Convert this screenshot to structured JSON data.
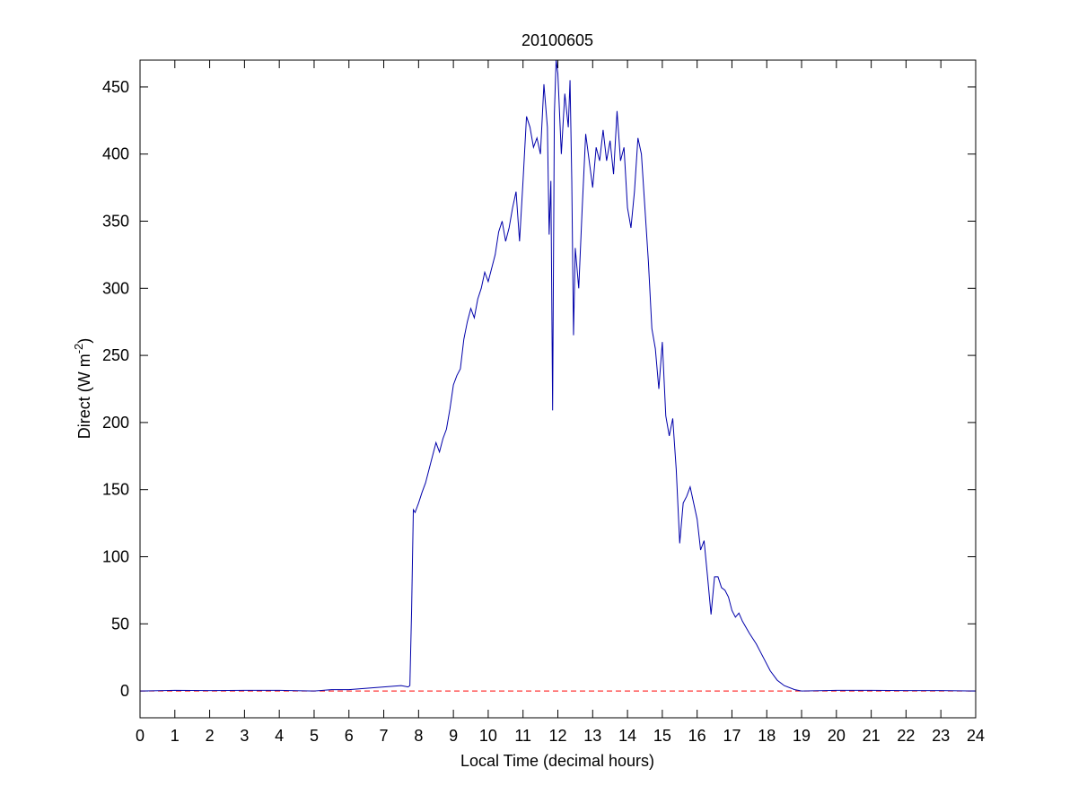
{
  "chart_data": {
    "type": "line",
    "title": "20100605",
    "xlabel": "Local Time (decimal hours)",
    "ylabel": {
      "text": "Direct (W m",
      "sup": "-2",
      "end": ")"
    },
    "xlim": [
      0,
      24
    ],
    "xticks": [
      0,
      1,
      2,
      3,
      4,
      5,
      6,
      7,
      8,
      9,
      10,
      11,
      12,
      13,
      14,
      15,
      16,
      17,
      18,
      19,
      20,
      21,
      22,
      23,
      24
    ],
    "ylim": [
      -20,
      470
    ],
    "yticks": [
      0,
      50,
      100,
      150,
      200,
      250,
      300,
      350,
      400,
      450
    ],
    "hline": {
      "value": 0,
      "color": "#ff0000",
      "style": "dashed"
    },
    "series": [
      {
        "color": "#0000aa",
        "x": [
          0,
          1,
          2,
          3,
          4,
          5,
          5.5,
          6,
          6.5,
          7,
          7.5,
          7.7,
          7.75,
          7.8,
          7.85,
          7.9,
          8.0,
          8.1,
          8.2,
          8.3,
          8.4,
          8.5,
          8.6,
          8.7,
          8.8,
          8.9,
          9.0,
          9.1,
          9.2,
          9.3,
          9.4,
          9.5,
          9.6,
          9.7,
          9.8,
          9.9,
          10.0,
          10.1,
          10.2,
          10.3,
          10.4,
          10.5,
          10.6,
          10.7,
          10.8,
          10.9,
          11.0,
          11.1,
          11.2,
          11.3,
          11.4,
          11.5,
          11.6,
          11.7,
          11.75,
          11.8,
          11.85,
          11.9,
          11.95,
          12.0,
          12.1,
          12.2,
          12.3,
          12.35,
          12.4,
          12.45,
          12.5,
          12.6,
          12.7,
          12.8,
          12.9,
          13.0,
          13.1,
          13.2,
          13.3,
          13.4,
          13.5,
          13.6,
          13.7,
          13.8,
          13.9,
          14.0,
          14.1,
          14.2,
          14.3,
          14.4,
          14.5,
          14.6,
          14.7,
          14.8,
          14.9,
          15.0,
          15.1,
          15.2,
          15.3,
          15.4,
          15.5,
          15.6,
          15.7,
          15.8,
          15.9,
          16.0,
          16.1,
          16.2,
          16.3,
          16.4,
          16.5,
          16.6,
          16.7,
          16.8,
          16.9,
          17.0,
          17.1,
          17.2,
          17.3,
          17.5,
          17.7,
          17.9,
          18.1,
          18.3,
          18.5,
          18.8,
          19,
          20,
          21,
          22,
          23,
          24
        ],
        "values": [
          0,
          0.5,
          0.3,
          0.5,
          0.5,
          0,
          1,
          1,
          2,
          3,
          4,
          3,
          4,
          60,
          135,
          133,
          140,
          148,
          155,
          165,
          175,
          185,
          178,
          188,
          195,
          210,
          228,
          235,
          240,
          262,
          275,
          285,
          278,
          292,
          300,
          312,
          305,
          315,
          325,
          342,
          350,
          335,
          345,
          360,
          372,
          335,
          380,
          428,
          420,
          405,
          412,
          400,
          452,
          420,
          340,
          380,
          209,
          430,
          470,
          460,
          400,
          445,
          420,
          455,
          380,
          265,
          330,
          300,
          360,
          415,
          395,
          375,
          405,
          395,
          418,
          395,
          410,
          385,
          432,
          395,
          405,
          360,
          345,
          372,
          412,
          400,
          360,
          320,
          270,
          255,
          225,
          260,
          205,
          190,
          203,
          165,
          110,
          140,
          145,
          152,
          140,
          128,
          105,
          112,
          85,
          57,
          85,
          85,
          77,
          75,
          70,
          60,
          55,
          58,
          52,
          43,
          35,
          25,
          15,
          8,
          4,
          1,
          0,
          0.5,
          0.5,
          0.3,
          0.3,
          0
        ]
      }
    ]
  }
}
